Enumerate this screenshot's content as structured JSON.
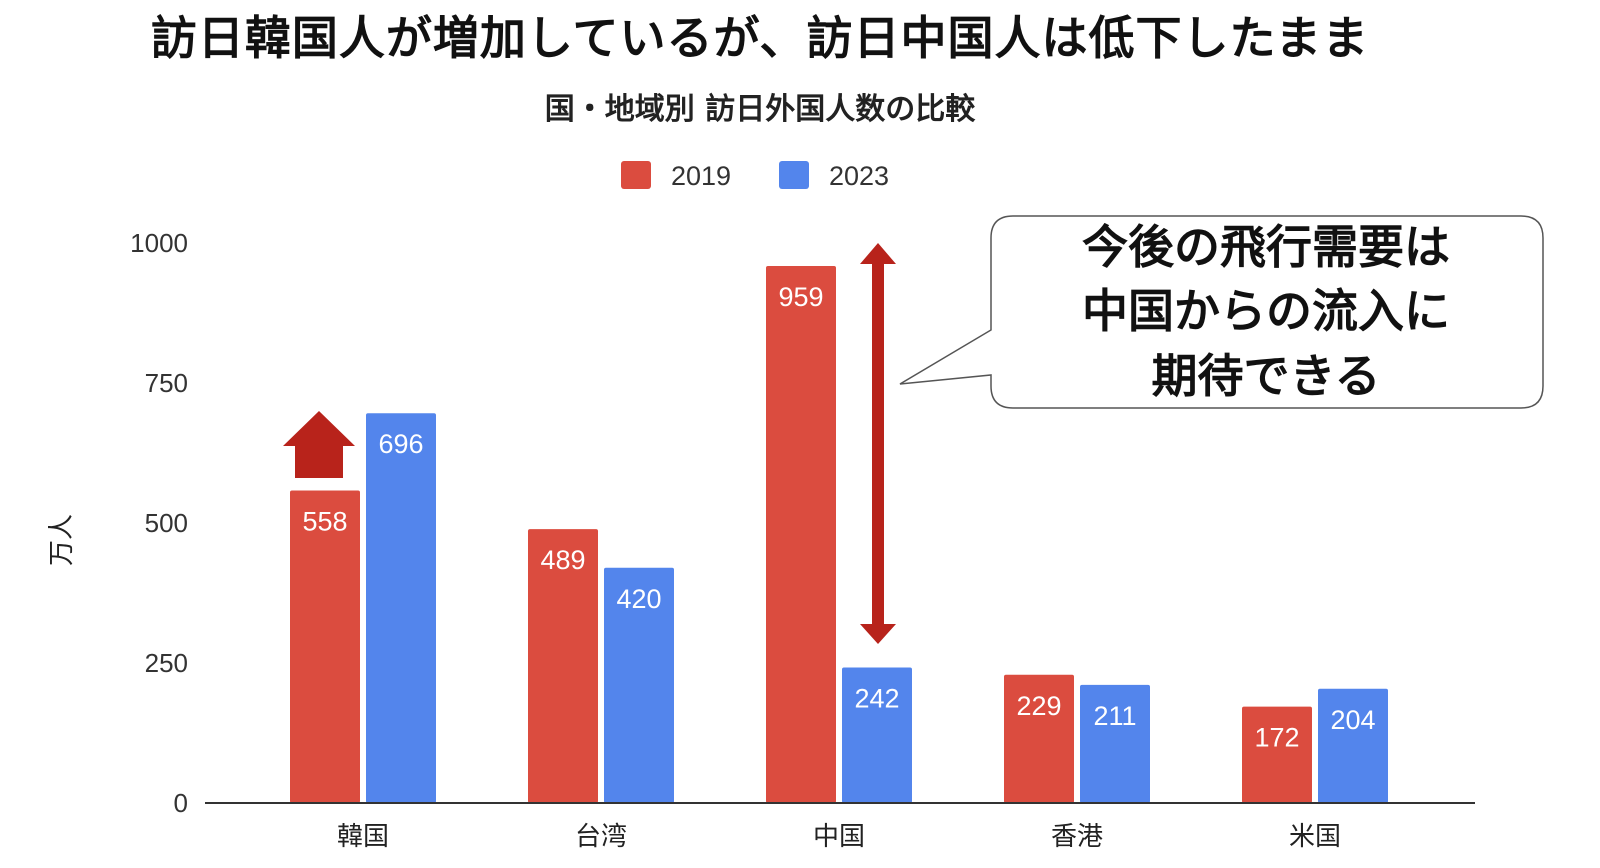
{
  "headline": "訪日韓国人が増加しているが、訪日中国人は低下したまま",
  "callout": {
    "lines": [
      "今後の飛行需要は",
      "中国からの流入に",
      "期待できる"
    ]
  },
  "colors": {
    "series_2019": "#DB4C3F",
    "series_2023": "#5385EC",
    "arrow": "#B8231B",
    "axis": "#333333"
  },
  "chart_data": {
    "type": "bar",
    "title": "国・地域別 訪日外国人数の比較",
    "xlabel": "",
    "ylabel": "万人",
    "ylim": [
      0,
      1000
    ],
    "yticks": [
      0,
      250,
      500,
      750,
      1000
    ],
    "categories": [
      "韓国",
      "台湾",
      "中国",
      "香港",
      "米国"
    ],
    "series": [
      {
        "name": "2019",
        "values": [
          558,
          489,
          959,
          229,
          172
        ]
      },
      {
        "name": "2023",
        "values": [
          696,
          420,
          242,
          211,
          204
        ]
      }
    ],
    "grid": false,
    "legend": "top-center",
    "data_labels": true
  }
}
